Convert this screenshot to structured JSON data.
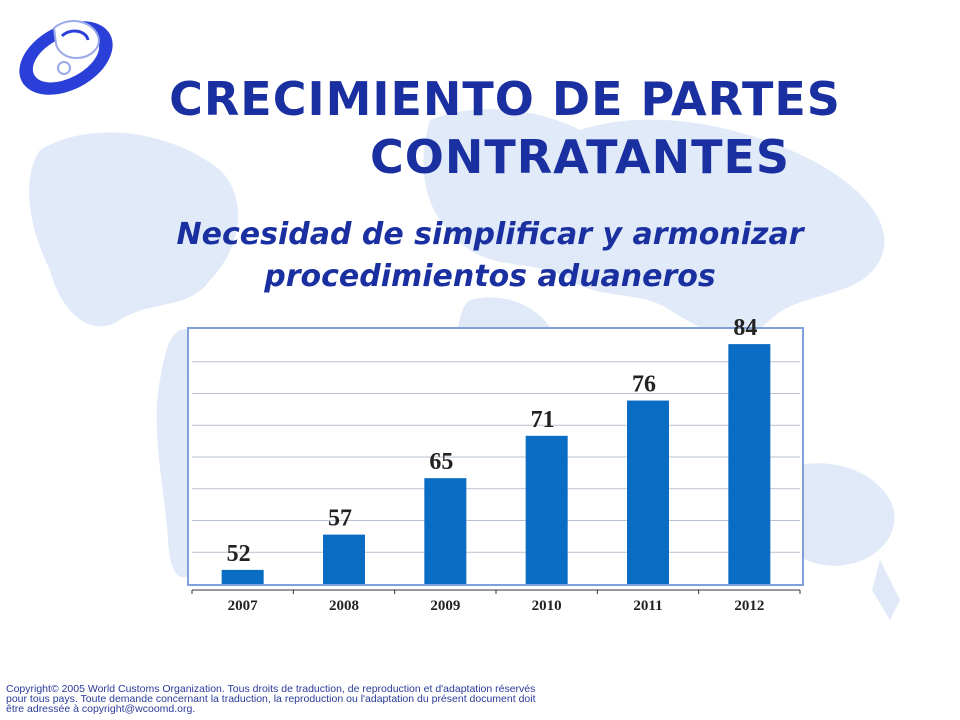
{
  "slide": {
    "title_line1": "CRECIMIENTO DE PARTES",
    "title_line2": "CONTRATANTES",
    "subtitle_line1": "Necesidad de simplificar y armonizar",
    "subtitle_line2": "procedimientos aduaneros",
    "copyright_line1": "Copyright© 2005 World Customs Organization.  Tous droits de traduction, de reproduction et d'adaptation réservés",
    "copyright_line2": "pour tous pays.  Toute demande concernant la traduction, la reproduction ou l'adaptation du présent document doit",
    "copyright_line3": "être adressée à copyright@wcoomd.org."
  },
  "colors": {
    "title": "#1a2fa0",
    "bar": "#0a6cc2",
    "frame": "#7fa0d8",
    "grid": "#b9c2cf"
  },
  "chart_data": {
    "type": "bar",
    "categories": [
      "2007",
      "2008",
      "2009",
      "2010",
      "2011",
      "2012"
    ],
    "values": [
      52,
      57,
      65,
      71,
      76,
      84
    ],
    "title": "",
    "xlabel": "",
    "ylabel": "",
    "ylim": [
      50,
      86
    ],
    "grid": true,
    "data_labels": true
  }
}
